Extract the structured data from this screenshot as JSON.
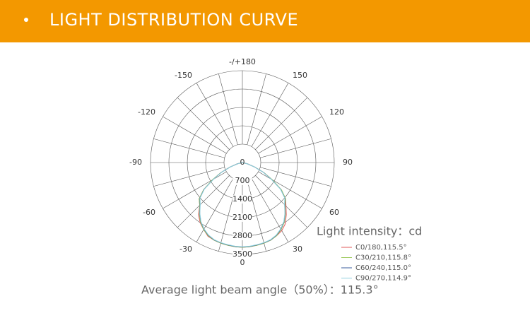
{
  "chart_data": {
    "type": "polar",
    "title": "LIGHT DISTRIBUTION CURVE",
    "r_label": "Light intensity：cd",
    "annotation": "Average light beam angle（50%）：115.3°",
    "rlim": [
      0,
      3500
    ],
    "rticks": [
      0,
      700,
      1400,
      2100,
      2800,
      3500
    ],
    "thetaticks": [
      0,
      30,
      60,
      90,
      120,
      150,
      {
        "value": 180,
        "label": "-/+180"
      },
      -150,
      -120,
      -90,
      -60,
      -30
    ],
    "x": [
      -80,
      -75,
      -70,
      -65,
      -60,
      -55,
      -50,
      -45,
      -40,
      -35,
      -30,
      -25,
      -20,
      -15,
      -10,
      -5,
      0,
      5,
      10,
      15,
      20,
      25,
      30,
      35,
      40,
      45,
      50,
      55,
      60,
      65,
      70,
      75,
      80
    ],
    "series": [
      {
        "name": "C0/180,115.5°",
        "color": "#e05a5a",
        "values": [
          0,
          200,
          500,
          900,
          1300,
          1800,
          2150,
          2300,
          2600,
          2800,
          2950,
          3100,
          3150,
          3180,
          3200,
          3220,
          3230,
          3220,
          3200,
          3180,
          3150,
          3080,
          3000,
          2850,
          2600,
          2350,
          2150,
          1800,
          1300,
          900,
          500,
          200,
          0
        ]
      },
      {
        "name": "C30/210,115.8°",
        "color": "#9cc95a",
        "values": [
          0,
          200,
          500,
          900,
          1320,
          1800,
          2150,
          2300,
          2550,
          2780,
          2950,
          3080,
          3150,
          3180,
          3200,
          3220,
          3230,
          3220,
          3200,
          3180,
          3150,
          3080,
          2950,
          2780,
          2550,
          2300,
          2150,
          1820,
          1320,
          900,
          500,
          200,
          0
        ]
      },
      {
        "name": "C60/240,115.0°",
        "color": "#3b5e9e",
        "values": [
          0,
          200,
          480,
          880,
          1280,
          1780,
          2120,
          2280,
          2530,
          2760,
          2930,
          3060,
          3140,
          3170,
          3190,
          3210,
          3220,
          3210,
          3190,
          3170,
          3140,
          3060,
          2930,
          2760,
          2530,
          2280,
          2120,
          1780,
          1280,
          880,
          480,
          200,
          0
        ]
      },
      {
        "name": "C90/270,114.9°",
        "color": "#8fd0dd",
        "values": [
          0,
          190,
          470,
          870,
          1270,
          1770,
          2110,
          2270,
          2520,
          2750,
          2920,
          3050,
          3130,
          3160,
          3180,
          3200,
          3210,
          3200,
          3180,
          3160,
          3130,
          3050,
          2920,
          2750,
          2520,
          2270,
          2110,
          1770,
          1270,
          870,
          470,
          190,
          0
        ]
      }
    ]
  }
}
